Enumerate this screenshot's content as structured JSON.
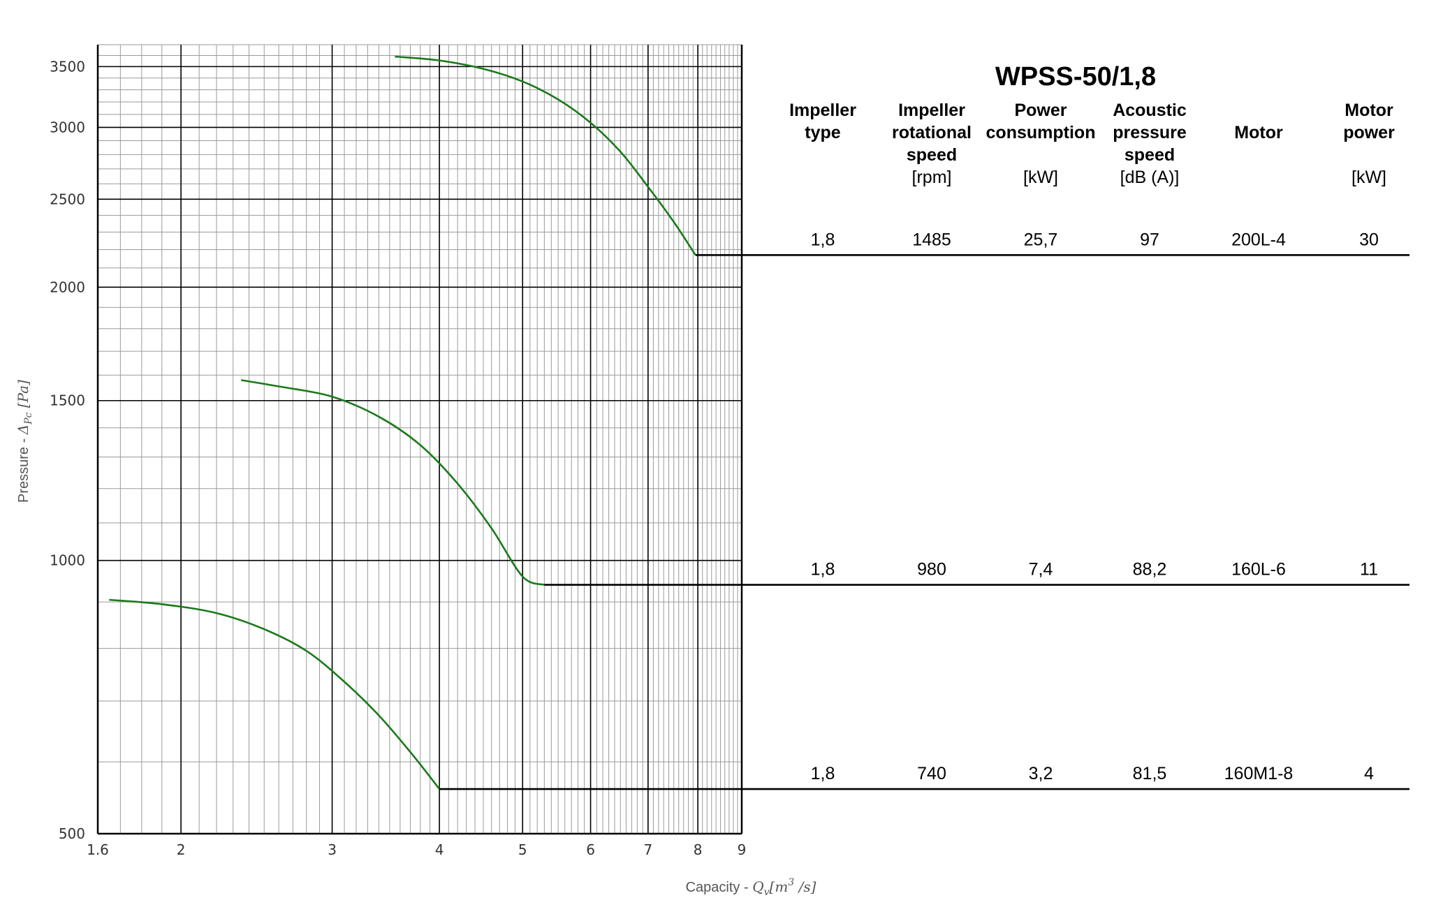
{
  "chart_data": {
    "type": "line",
    "title": "WPSS-50/1,8",
    "x_axis": {
      "label": "Capacity - ",
      "label_math": "Q",
      "label_math_sub": "v",
      "label_unit_pre": "[m",
      "label_unit_sup": "3",
      "label_unit_post": " /s]",
      "scale": "log",
      "range": [
        1.6,
        9
      ],
      "ticks": [
        "1.6",
        "2",
        "3",
        "4",
        "5",
        "6",
        "7",
        "8",
        "9"
      ]
    },
    "y_axis": {
      "label": "Pressure - ",
      "label_math": "Δ",
      "label_math_sub": "Pc",
      "label_unit": " [Pa]",
      "scale": "log",
      "range": [
        500,
        3700
      ],
      "ticks": [
        "500",
        "1000",
        "1500",
        "2000",
        "2500",
        "3000",
        "3500"
      ]
    },
    "grid": true,
    "line_color": "#1a7a1a",
    "series": [
      {
        "speed_rpm": 1485,
        "curve_x": [
          3.55,
          4.0,
          4.5,
          5.0,
          5.5,
          6.0,
          6.5,
          7.0,
          7.5,
          7.95
        ],
        "curve_y": [
          3590,
          3555,
          3480,
          3370,
          3220,
          3035,
          2820,
          2580,
          2360,
          2170
        ],
        "rated_point": [
          7.95,
          2170
        ]
      },
      {
        "speed_rpm": 980,
        "curve_x": [
          2.35,
          2.6,
          3.0,
          3.4,
          3.8,
          4.2,
          4.6,
          5.0,
          5.3
        ],
        "curve_y": [
          1580,
          1555,
          1515,
          1440,
          1340,
          1215,
          1085,
          960,
          940
        ],
        "rated_point": [
          5.3,
          940
        ]
      },
      {
        "speed_rpm": 740,
        "curve_x": [
          1.65,
          1.9,
          2.2,
          2.5,
          2.8,
          3.1,
          3.4,
          3.7,
          4.0
        ],
        "curve_y": [
          905,
          895,
          875,
          840,
          795,
          735,
          675,
          615,
          560
        ],
        "rated_point": [
          4.0,
          560
        ]
      }
    ]
  },
  "table": {
    "columns": [
      {
        "head": [
          "Impeller",
          "type"
        ],
        "unit": ""
      },
      {
        "head": [
          "Impeller",
          "rotational",
          "speed"
        ],
        "unit": "[rpm]"
      },
      {
        "head": [
          "Power",
          "consumption"
        ],
        "unit": "[kW]"
      },
      {
        "head": [
          "Acoustic",
          "pressure",
          "speed"
        ],
        "unit": "[dB (A)]"
      },
      {
        "head": [
          "Motor"
        ],
        "unit": ""
      },
      {
        "head": [
          "Motor",
          "power"
        ],
        "unit": "[kW]"
      }
    ],
    "rows": [
      [
        "1,8",
        "1485",
        "25,7",
        "97",
        "200L-4",
        "30"
      ],
      [
        "1,8",
        "980",
        "7,4",
        "88,2",
        "160L-6",
        "11"
      ],
      [
        "1,8",
        "740",
        "3,2",
        "81,5",
        "160M1-8",
        "4"
      ]
    ]
  }
}
